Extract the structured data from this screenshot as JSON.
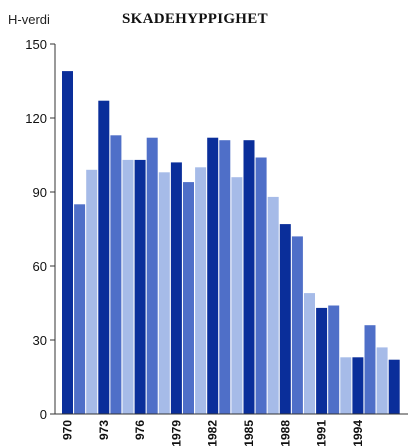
{
  "chart_data": {
    "type": "bar",
    "title": "SKADEHYPPIGHET",
    "ylabel": "H-verdi",
    "xlabel": "",
    "ylim": [
      0,
      150
    ],
    "yticks": [
      0,
      30,
      60,
      90,
      120,
      150
    ],
    "grid": false,
    "categories": [
      "1970",
      "1971",
      "1972",
      "1973",
      "1974",
      "1975",
      "1976",
      "1977",
      "1978",
      "1979",
      "1980",
      "1981",
      "1982",
      "1983",
      "1984",
      "1985",
      "1986",
      "1987",
      "1988",
      "1989",
      "1990",
      "1991",
      "1992",
      "1993",
      "1994",
      "1995",
      "1996",
      "1997"
    ],
    "xtick_labels": [
      {
        "label": "970",
        "category": "1970"
      },
      {
        "label": "973",
        "category": "1973"
      },
      {
        "label": "976",
        "category": "1976"
      },
      {
        "label": "1979",
        "category": "1979"
      },
      {
        "label": "1982",
        "category": "1982"
      },
      {
        "label": "1985",
        "category": "1985"
      },
      {
        "label": "1988",
        "category": "1988"
      },
      {
        "label": "1991",
        "category": "1991"
      },
      {
        "label": "1994",
        "category": "1994"
      }
    ],
    "values": [
      139,
      85,
      99,
      127,
      113,
      103,
      103,
      112,
      98,
      102,
      94,
      100,
      112,
      111,
      96,
      111,
      104,
      88,
      77,
      72,
      49,
      43,
      44,
      23,
      23,
      36,
      27,
      22
    ],
    "colors": [
      "#0a2e9a",
      "#4f6fc8",
      "#a6bbe8"
    ]
  }
}
